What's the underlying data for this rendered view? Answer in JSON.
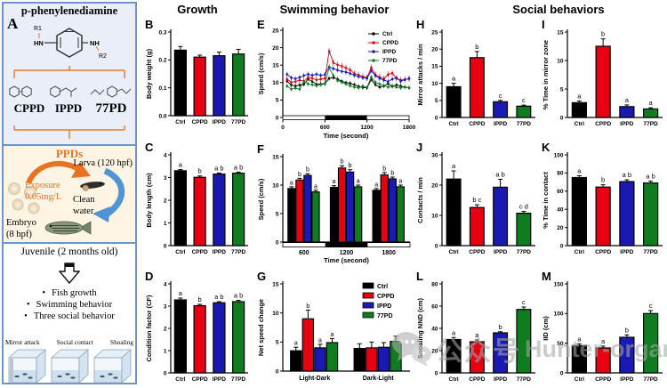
{
  "headers": {
    "growth": "Growth",
    "swimming": "Swimming behavior",
    "social": "Social behaviors"
  },
  "colors": {
    "Ctrl": "#000000",
    "CPPD": "#e60012",
    "IPPD": "#1a1ab3",
    "77PD": "#0e7c1f"
  },
  "watermark": {
    "icon": "wechat-bubbles-icon",
    "text_cn": "公众号",
    "text_en": "Hunter-organs"
  },
  "panel_a": {
    "label": "A",
    "top": {
      "title": "p-phenylenediamine",
      "r1": "R1",
      "r2": "R2",
      "hn": "HN",
      "nh": "NH",
      "compounds": [
        "CPPD",
        "IPPD",
        "77PD"
      ]
    },
    "middle": {
      "ppds": "PPDs",
      "larva": "Larva (120 hpf)",
      "exposure1": "Exposure",
      "exposure2": "0.05mg/L",
      "clean1": "Clean",
      "clean2": "water",
      "embryo1": "Embryo",
      "embryo2": "(8 hpf)"
    },
    "bottom": {
      "juvenile": "Juvenile (2 months old)",
      "bullets": [
        "Fish growth",
        "Swimming behavior",
        "Three social behavior"
      ],
      "assays": [
        "Mirror attack",
        "Social contact",
        "Shoaling"
      ]
    }
  },
  "chart_data": [
    {
      "panel": "B",
      "type": "bar",
      "ylabel": "Body weight (g)",
      "ylim": [
        0,
        0.3
      ],
      "yticks": [
        "0.0",
        "0.1",
        "0.2",
        "0.3"
      ],
      "categories": [
        "Ctrl",
        "CPPD",
        "IPPD",
        "77PD"
      ],
      "values": [
        0.235,
        0.21,
        0.215,
        0.221
      ],
      "errors": [
        0.013,
        0.007,
        0.013,
        0.017
      ],
      "letters": [
        "",
        "",
        "",
        ""
      ]
    },
    {
      "panel": "C",
      "type": "bar",
      "ylabel": "Body length (cm)",
      "ylim": [
        0,
        4
      ],
      "yticks": [
        "0",
        "1",
        "2",
        "3",
        "4"
      ],
      "categories": [
        "Ctrl",
        "CPPD",
        "IPPD",
        "77PD"
      ],
      "values": [
        3.3,
        3.01,
        3.15,
        3.19
      ],
      "errors": [
        0.05,
        0.06,
        0.05,
        0.05
      ],
      "letters": [
        "a",
        "b",
        "a b",
        "a b"
      ]
    },
    {
      "panel": "D",
      "type": "bar",
      "ylabel": "Condition factor (CF)",
      "ylim": [
        0,
        4
      ],
      "yticks": [
        "0",
        "1",
        "2",
        "3",
        "4"
      ],
      "categories": [
        "Ctrl",
        "CPPD",
        "IPPD",
        "77PD"
      ],
      "values": [
        3.28,
        3.02,
        3.15,
        3.2
      ],
      "errors": [
        0.08,
        0.06,
        0.05,
        0.06
      ],
      "letters": [
        "a",
        "b",
        "a b",
        "a b"
      ]
    },
    {
      "panel": "E",
      "type": "line",
      "ylabel": "Speed (cm/s)",
      "xlabel": "Time (second)",
      "ylim": [
        0,
        25
      ],
      "yticks": [
        "0",
        "5",
        "10",
        "15",
        "20",
        "25"
      ],
      "xlim": [
        0,
        1800
      ],
      "xticks": [
        0,
        600,
        1200,
        1800
      ],
      "dark_band": [
        600,
        1200
      ],
      "x": [
        60,
        120,
        180,
        240,
        300,
        360,
        420,
        480,
        540,
        600,
        660,
        720,
        780,
        840,
        900,
        960,
        1020,
        1080,
        1140,
        1200,
        1260,
        1320,
        1380,
        1440,
        1500,
        1560,
        1620,
        1680,
        1740,
        1800
      ],
      "series": [
        {
          "name": "Ctrl",
          "err": 0.6,
          "values": [
            10.4,
            9.3,
            9.0,
            9.3,
            9.5,
            11.0,
            10.3,
            9.5,
            9.6,
            9.7,
            11.2,
            11.4,
            11.0,
            10.4,
            10.0,
            9.8,
            9.4,
            8.9,
            8.6,
            8.5,
            10.9,
            9.4,
            8.7,
            9.0,
            9.7,
            8.9,
            9.3,
            9.0,
            8.7,
            8.5
          ]
        },
        {
          "name": "CPPD",
          "err": 0.9,
          "values": [
            11.0,
            10.1,
            10.3,
            10.7,
            10.4,
            11.5,
            11.2,
            10.8,
            11.0,
            11.2,
            19.0,
            15.7,
            15.1,
            14.7,
            14.2,
            13.6,
            12.6,
            12.2,
            11.7,
            11.4,
            14.3,
            12.2,
            11.6,
            11.1,
            12.3,
            12.7,
            11.2,
            10.7,
            10.9,
            11.1
          ]
        },
        {
          "name": "IPPD",
          "err": 0.7,
          "values": [
            12.4,
            11.4,
            11.1,
            11.5,
            12.0,
            12.4,
            12.1,
            12.4,
            12.1,
            12.3,
            14.5,
            14.0,
            13.6,
            13.2,
            13.0,
            12.6,
            12.1,
            11.7,
            11.4,
            11.2,
            13.4,
            12.0,
            11.2,
            10.7,
            10.3,
            11.0,
            11.4,
            10.4,
            10.8,
            11.2
          ]
        },
        {
          "name": "77PD",
          "err": 0.6,
          "values": [
            9.0,
            8.1,
            8.4,
            8.1,
            10.4,
            9.6,
            9.4,
            9.1,
            9.4,
            9.6,
            14.2,
            12.0,
            10.6,
            10.1,
            9.6,
            9.1,
            8.7,
            8.5,
            9.0,
            8.6,
            11.6,
            10.1,
            9.6,
            9.1,
            8.7,
            9.1,
            8.7,
            8.5,
            8.8,
            8.5
          ]
        }
      ]
    },
    {
      "panel": "F",
      "type": "grouped_bar",
      "ylabel": "Speed (cm/s)",
      "xlabel": "Time (second)",
      "ylim": [
        0,
        15
      ],
      "yticks": [
        "0",
        "5",
        "10",
        "15"
      ],
      "categories": [
        "600",
        "1200",
        "1800"
      ],
      "band": [
        "light",
        "dark",
        "light"
      ],
      "series": [
        {
          "name": "Ctrl",
          "values": [
            9.4,
            9.6,
            9.1
          ],
          "errors": [
            0.3,
            0.3,
            0.3
          ],
          "letters": [
            "a",
            "a",
            "a"
          ]
        },
        {
          "name": "CPPD",
          "values": [
            10.9,
            13.0,
            11.8
          ],
          "errors": [
            0.3,
            0.4,
            0.4
          ],
          "letters": [
            "b",
            "b",
            "b"
          ]
        },
        {
          "name": "IPPD",
          "values": [
            11.7,
            12.3,
            11.1
          ],
          "errors": [
            0.3,
            0.4,
            0.3
          ],
          "letters": [
            "b",
            "b",
            "b"
          ]
        },
        {
          "name": "77PD",
          "values": [
            8.8,
            9.7,
            9.7
          ],
          "errors": [
            0.3,
            0.3,
            0.3
          ],
          "letters": [
            "a",
            "a",
            "a"
          ]
        }
      ]
    },
    {
      "panel": "G",
      "type": "grouped_bar",
      "ylabel": "Net speed change",
      "ylim": [
        0,
        15
      ],
      "yticks": [
        "0",
        "5",
        "10",
        "15"
      ],
      "categories": [
        "Light-Dark",
        "Dark-Light"
      ],
      "legend": true,
      "series": [
        {
          "name": "Ctrl",
          "values": [
            3.5,
            3.9
          ],
          "errors": [
            0.6,
            0.8
          ],
          "letters": [
            "a",
            ""
          ]
        },
        {
          "name": "CPPD",
          "values": [
            9.0,
            4.0
          ],
          "errors": [
            1.5,
            1.0
          ],
          "letters": [
            "b",
            ""
          ]
        },
        {
          "name": "IPPD",
          "values": [
            4.0,
            4.1
          ],
          "errors": [
            0.6,
            0.8
          ],
          "letters": [
            "a",
            ""
          ]
        },
        {
          "name": "77PD",
          "values": [
            4.9,
            5.1
          ],
          "errors": [
            0.7,
            0.9
          ],
          "letters": [
            "a",
            ""
          ]
        }
      ]
    },
    {
      "panel": "H",
      "type": "bar",
      "ylabel": "Mirror attacks / min",
      "ylim": [
        0,
        25
      ],
      "yticks": [
        "0",
        "5",
        "10",
        "15",
        "20",
        "25"
      ],
      "categories": [
        "Ctrl",
        "CPPD",
        "IPPD",
        "77PD"
      ],
      "values": [
        9.0,
        17.5,
        4.6,
        3.3
      ],
      "errors": [
        1.0,
        1.8,
        0.4,
        0.3
      ],
      "letters": [
        "a",
        "b",
        "c",
        "c"
      ]
    },
    {
      "panel": "I",
      "type": "bar",
      "ylabel": "% Time in mirror zone",
      "ylim": [
        0,
        15
      ],
      "yticks": [
        "0",
        "5",
        "10",
        "15"
      ],
      "categories": [
        "Ctrl",
        "CPPD",
        "IPPD",
        "77PD"
      ],
      "values": [
        2.6,
        12.5,
        1.9,
        1.5
      ],
      "errors": [
        0.3,
        1.3,
        0.3,
        0.2
      ],
      "letters": [
        "a",
        "b",
        "a",
        "a"
      ]
    },
    {
      "panel": "J",
      "type": "bar",
      "ylabel": "Contacts / min",
      "ylim": [
        0,
        30
      ],
      "yticks": [
        "0",
        "10",
        "20",
        "30"
      ],
      "categories": [
        "Ctrl",
        "CPPD",
        "IPPD",
        "77PD"
      ],
      "values": [
        22,
        12.6,
        19.3,
        10.7
      ],
      "errors": [
        2.7,
        0.9,
        2.6,
        0.6
      ],
      "letters": [
        "a",
        "b c",
        "a b",
        "c d"
      ]
    },
    {
      "panel": "K",
      "type": "bar",
      "ylabel": "% Time in contact",
      "ylim": [
        0,
        100
      ],
      "yticks": [
        "0",
        "20",
        "40",
        "60",
        "80",
        "100"
      ],
      "categories": [
        "Ctrl",
        "CPPD",
        "IPPD",
        "77PD"
      ],
      "values": [
        75,
        64.5,
        70.5,
        69
      ],
      "errors": [
        2,
        2.5,
        2,
        2
      ],
      "letters": [
        "a",
        "b",
        "a b",
        "a b"
      ]
    },
    {
      "panel": "L",
      "type": "bar",
      "ylabel": "Shoaling NND (cm)",
      "ylim": [
        0,
        80
      ],
      "yticks": [
        "0",
        "20",
        "40",
        "60",
        "80"
      ],
      "categories": [
        "Ctrl",
        "CPPD",
        "IPPD",
        "77PD"
      ],
      "values": [
        30,
        28,
        36,
        57
      ],
      "errors": [
        1.8,
        1.6,
        1.0,
        2.2
      ],
      "letters": [
        "a",
        "a",
        "b",
        "c"
      ]
    },
    {
      "panel": "M",
      "type": "bar",
      "ylabel": "IID (cm)",
      "ylim": [
        0,
        150
      ],
      "yticks": [
        "0",
        "50",
        "100",
        "150"
      ],
      "categories": [
        "Ctrl",
        "CPPD",
        "IPPD",
        "77PD"
      ],
      "values": [
        46,
        42,
        60,
        100
      ],
      "errors": [
        3,
        3,
        4,
        5
      ],
      "letters": [
        "a",
        "a",
        "b",
        "c"
      ]
    }
  ]
}
